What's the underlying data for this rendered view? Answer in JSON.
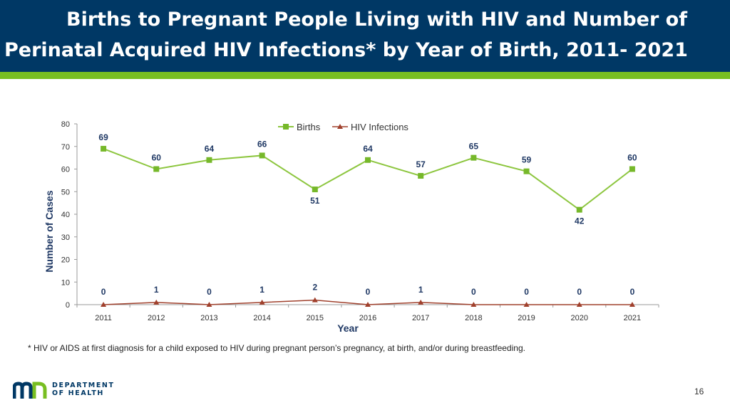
{
  "slide": {
    "title_line1": "Births to Pregnant People Living with HIV and Number of",
    "title_line2": "Perinatal Acquired HIV Infections* by Year of Birth, 2011- 2021",
    "footnote": "* HIV or AIDS at first diagnosis for a child exposed to HIV during pregnant person’s pregnancy, at birth, and/or during breastfeeding.",
    "page_number": "16",
    "logo": {
      "line1": "DEPARTMENT",
      "line2": "OF HEALTH"
    }
  },
  "colors": {
    "header_bg": "#003865",
    "accent_green": "#78BE21",
    "births_line": "#8DC63F",
    "births_marker": "#76B82A",
    "infections_line": "#A0402C",
    "label_text": "#1F3864"
  },
  "chart_data": {
    "type": "line",
    "x": [
      "2011",
      "2012",
      "2013",
      "2014",
      "2015",
      "2016",
      "2017",
      "2018",
      "2019",
      "2020",
      "2021"
    ],
    "series": [
      {
        "name": "Births",
        "values": [
          69,
          60,
          64,
          66,
          51,
          64,
          57,
          65,
          59,
          42,
          60
        ],
        "marker": "square"
      },
      {
        "name": "HIV Infections",
        "values": [
          0,
          1,
          0,
          1,
          2,
          0,
          1,
          0,
          0,
          0,
          0
        ],
        "marker": "triangle"
      }
    ],
    "xlabel": "Year",
    "ylabel": "Number of Cases",
    "ylim": [
      0,
      80
    ],
    "yticks": [
      0,
      10,
      20,
      30,
      40,
      50,
      60,
      70,
      80
    ],
    "grid": false,
    "legend": "top"
  }
}
